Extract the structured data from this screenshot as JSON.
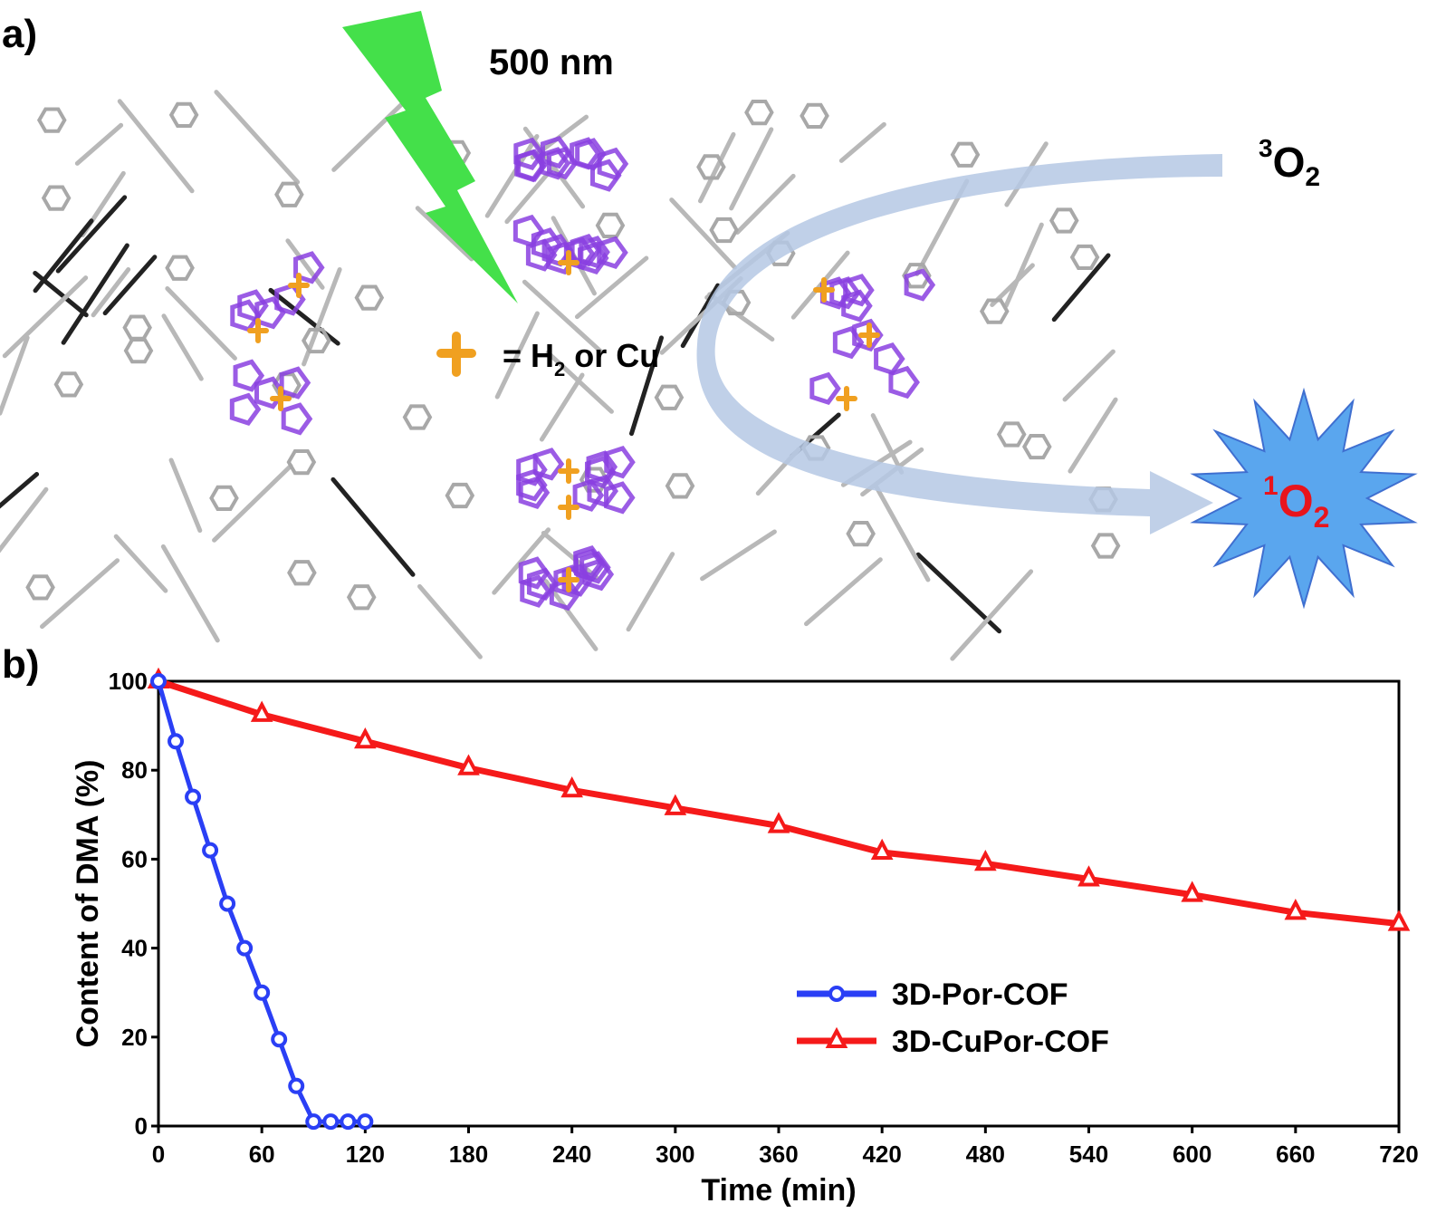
{
  "panel_a": {
    "label": "a)",
    "light_label": "500 nm",
    "legend_text_prefix": "= H",
    "legend_text_sub": "2",
    "legend_text_suffix": " or Cu",
    "triplet_sup": "3",
    "triplet_main": "O",
    "triplet_sub": "2",
    "singlet_sup": "1",
    "singlet_main": "O",
    "singlet_sub": "2",
    "colors": {
      "light_bolt": "#44e04a",
      "porphyrin": "#8a3fe0",
      "linker": "#b8b8b8",
      "metal_center": "#f0a020",
      "arrow": "#a9c2e6",
      "star": "#5aa6ee",
      "singlet_text": "#e8141c"
    }
  },
  "panel_b_label": "b)",
  "chart_data": {
    "type": "line",
    "xlabel": "Time (min)",
    "ylabel": "Content of DMA (%)",
    "xlim": [
      0,
      720
    ],
    "ylim": [
      0,
      100
    ],
    "xticks": [
      0,
      60,
      120,
      180,
      240,
      300,
      360,
      420,
      480,
      540,
      600,
      660,
      720
    ],
    "yticks": [
      0,
      20,
      40,
      60,
      80,
      100
    ],
    "grid": false,
    "legend_placement": "center-right",
    "series": [
      {
        "name": "3D-Por-COF",
        "color": "#2a3ff5",
        "marker": "circle",
        "x": [
          0,
          10,
          20,
          30,
          40,
          50,
          60,
          70,
          80,
          90,
          100,
          110,
          120
        ],
        "y": [
          100,
          86.5,
          74,
          62,
          50,
          40,
          30,
          19.5,
          9,
          1,
          1,
          1,
          1
        ]
      },
      {
        "name": "3D-CuPor-COF",
        "color": "#f51a1a",
        "marker": "triangle",
        "x": [
          0,
          60,
          120,
          180,
          240,
          300,
          360,
          420,
          480,
          540,
          600,
          660,
          720
        ],
        "y": [
          100,
          92.5,
          86.5,
          80.5,
          75.5,
          71.5,
          67.5,
          61.5,
          59,
          55.5,
          52,
          48,
          45.5
        ]
      }
    ]
  }
}
